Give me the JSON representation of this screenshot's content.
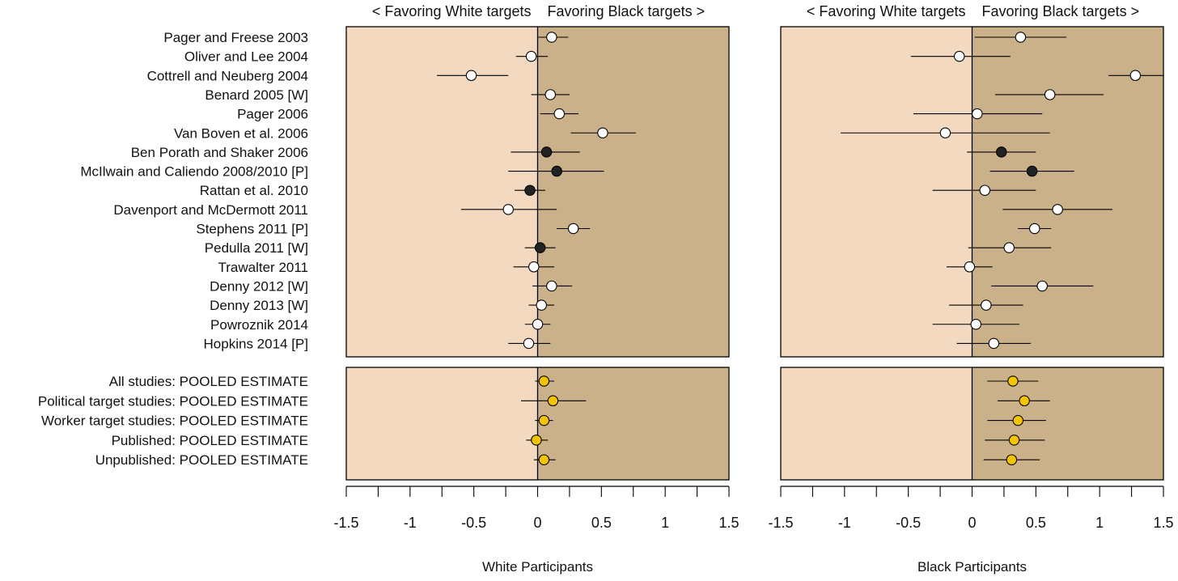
{
  "colors": {
    "favor_white_bg": "#f2d9c0",
    "favor_black_bg": "#cbb18a",
    "open_point": "#ffffff",
    "filled_point": "#222222",
    "pooled_point": "#f5c400",
    "line": "#000000"
  },
  "headers": {
    "favor_white": "< Favoring White targets",
    "favor_black": "Favoring Black targets >"
  },
  "chart_data": {
    "type": "forest",
    "studies": [
      "Pager and Freese 2003",
      "Oliver and Lee 2004",
      "Cottrell and Neuberg 2004",
      "Benard 2005 [W]",
      "Pager 2006",
      "Van Boven et al. 2006",
      "Ben Porath and Shaker 2006",
      "McIlwain and Caliendo 2008/2010 [P]",
      "Rattan et al. 2010",
      "Davenport and McDermott 2011",
      "Stephens 2011 [P]",
      "Pedulla 2011 [W]",
      "Trawalter 2011",
      "Denny 2012 [W]",
      "Denny 2013 [W]",
      "Powroznik 2014",
      "Hopkins 2014 [P]"
    ],
    "pooled": [
      "All studies: POOLED ESTIMATE",
      "Political target studies: POOLED ESTIMATE",
      "Worker target studies: POOLED ESTIMATE",
      "Published: POOLED ESTIMATE",
      "Unpublished: POOLED ESTIMATE"
    ],
    "xlim": [
      -1.5,
      1.5
    ],
    "xticks": [
      -1.5,
      -1,
      -0.5,
      0,
      0.5,
      1,
      1.5
    ],
    "xtick_labels": [
      "-1.5",
      "-1",
      "-0.5",
      "0",
      "0.5",
      "1",
      "1.5"
    ],
    "panels": [
      {
        "xlabel": "White Participants",
        "study_estimates": [
          {
            "est": 0.11,
            "lo": 0.0,
            "hi": 0.24,
            "style": "open"
          },
          {
            "est": -0.05,
            "lo": -0.17,
            "hi": 0.08,
            "style": "open"
          },
          {
            "est": -0.52,
            "lo": -0.79,
            "hi": -0.23,
            "style": "open"
          },
          {
            "est": 0.1,
            "lo": -0.05,
            "hi": 0.25,
            "style": "open"
          },
          {
            "est": 0.17,
            "lo": 0.02,
            "hi": 0.32,
            "style": "open"
          },
          {
            "est": 0.51,
            "lo": 0.26,
            "hi": 0.77,
            "style": "open"
          },
          {
            "est": 0.07,
            "lo": -0.21,
            "hi": 0.33,
            "style": "filled"
          },
          {
            "est": 0.15,
            "lo": -0.23,
            "hi": 0.52,
            "style": "filled"
          },
          {
            "est": -0.06,
            "lo": -0.18,
            "hi": 0.06,
            "style": "filled"
          },
          {
            "est": -0.23,
            "lo": -0.6,
            "hi": 0.15,
            "style": "open"
          },
          {
            "est": 0.28,
            "lo": 0.15,
            "hi": 0.41,
            "style": "open"
          },
          {
            "est": 0.02,
            "lo": -0.1,
            "hi": 0.14,
            "style": "filled"
          },
          {
            "est": -0.03,
            "lo": -0.19,
            "hi": 0.13,
            "style": "open"
          },
          {
            "est": 0.11,
            "lo": -0.04,
            "hi": 0.27,
            "style": "open"
          },
          {
            "est": 0.03,
            "lo": -0.07,
            "hi": 0.13,
            "style": "open"
          },
          {
            "est": 0.0,
            "lo": -0.1,
            "hi": 0.1,
            "style": "open"
          },
          {
            "est": -0.07,
            "lo": -0.23,
            "hi": 0.1,
            "style": "open"
          }
        ],
        "pooled_estimates": [
          {
            "est": 0.05,
            "lo": -0.02,
            "hi": 0.13
          },
          {
            "est": 0.12,
            "lo": -0.13,
            "hi": 0.38
          },
          {
            "est": 0.05,
            "lo": -0.02,
            "hi": 0.12
          },
          {
            "est": -0.01,
            "lo": -0.09,
            "hi": 0.08
          },
          {
            "est": 0.05,
            "lo": -0.03,
            "hi": 0.14
          }
        ]
      },
      {
        "xlabel": "Black Participants",
        "study_estimates": [
          {
            "est": 0.38,
            "lo": 0.02,
            "hi": 0.74,
            "style": "open"
          },
          {
            "est": -0.1,
            "lo": -0.48,
            "hi": 0.3,
            "style": "open"
          },
          {
            "est": 1.28,
            "lo": 1.07,
            "hi": 1.5,
            "style": "open"
          },
          {
            "est": 0.61,
            "lo": 0.18,
            "hi": 1.03,
            "style": "open"
          },
          {
            "est": 0.04,
            "lo": -0.46,
            "hi": 0.55,
            "style": "open"
          },
          {
            "est": -0.21,
            "lo": -1.03,
            "hi": 0.61,
            "style": "open"
          },
          {
            "est": 0.23,
            "lo": -0.04,
            "hi": 0.5,
            "style": "filled"
          },
          {
            "est": 0.47,
            "lo": 0.14,
            "hi": 0.8,
            "style": "filled"
          },
          {
            "est": 0.1,
            "lo": -0.31,
            "hi": 0.5,
            "style": "open"
          },
          {
            "est": 0.67,
            "lo": 0.24,
            "hi": 1.1,
            "style": "open"
          },
          {
            "est": 0.49,
            "lo": 0.36,
            "hi": 0.62,
            "style": "open"
          },
          {
            "est": 0.29,
            "lo": -0.03,
            "hi": 0.62,
            "style": "open"
          },
          {
            "est": -0.02,
            "lo": -0.2,
            "hi": 0.16,
            "style": "open"
          },
          {
            "est": 0.55,
            "lo": 0.15,
            "hi": 0.95,
            "style": "open"
          },
          {
            "est": 0.11,
            "lo": -0.18,
            "hi": 0.4,
            "style": "open"
          },
          {
            "est": 0.03,
            "lo": -0.31,
            "hi": 0.37,
            "style": "open"
          },
          {
            "est": 0.17,
            "lo": -0.12,
            "hi": 0.46,
            "style": "open"
          }
        ],
        "pooled_estimates": [
          {
            "est": 0.32,
            "lo": 0.12,
            "hi": 0.52
          },
          {
            "est": 0.41,
            "lo": 0.2,
            "hi": 0.61
          },
          {
            "est": 0.36,
            "lo": 0.12,
            "hi": 0.58
          },
          {
            "est": 0.33,
            "lo": 0.1,
            "hi": 0.57
          },
          {
            "est": 0.31,
            "lo": 0.09,
            "hi": 0.53
          }
        ]
      }
    ]
  }
}
